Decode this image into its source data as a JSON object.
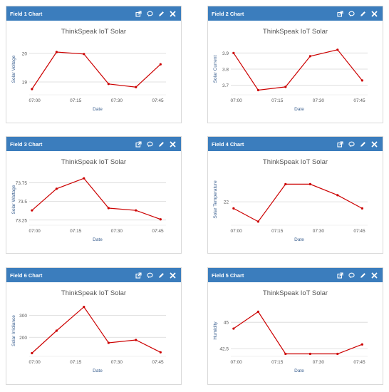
{
  "charts": [
    {
      "header": "Field 1 Chart",
      "chart_data": {
        "type": "line",
        "title": "ThinkSpeak IoT Solar",
        "xlabel": "Date",
        "ylabel": "Solar Voltage",
        "x_ticks": [
          "07:00",
          "07:15",
          "07:30",
          "07:45"
        ],
        "y_ticks": [
          "19",
          "20"
        ],
        "y_tick_values": [
          19,
          20
        ],
        "ylim": [
          18.6,
          20.3
        ],
        "x": [
          "06:59",
          "07:08",
          "07:18",
          "07:27",
          "07:37",
          "07:46"
        ],
        "y": [
          18.75,
          20.05,
          19.98,
          18.93,
          18.82,
          19.62
        ],
        "color": "#cc0000"
      }
    },
    {
      "header": "Field 2 Chart",
      "chart_data": {
        "type": "line",
        "title": "ThinkSpeak IoT Solar",
        "xlabel": "Date",
        "ylabel": "Solar Current",
        "x_ticks": [
          "07:00",
          "07:15",
          "07:30",
          "07:45"
        ],
        "y_ticks": [
          "3.7",
          "3.8",
          "3.9"
        ],
        "y_tick_values": [
          3.7,
          3.8,
          3.9
        ],
        "ylim": [
          3.65,
          3.95
        ],
        "x": [
          "06:59",
          "07:08",
          "07:18",
          "07:27",
          "07:37",
          "07:46"
        ],
        "y": [
          3.9,
          3.67,
          3.69,
          3.88,
          3.92,
          3.73
        ],
        "color": "#cc0000"
      }
    },
    {
      "header": "Field 3 Chart",
      "chart_data": {
        "type": "line",
        "title": "ThinkSpeak IoT Solar",
        "xlabel": "Date",
        "ylabel": "Solar Wattage",
        "x_ticks": [
          "07:00",
          "07:15",
          "07:30",
          "07:45"
        ],
        "y_ticks": [
          "73.25",
          "73.5",
          "73.75"
        ],
        "y_tick_values": [
          73.25,
          73.5,
          73.75
        ],
        "ylim": [
          73.2,
          73.85
        ],
        "x": [
          "06:59",
          "07:08",
          "07:18",
          "07:27",
          "07:37",
          "07:46"
        ],
        "y": [
          73.38,
          73.67,
          73.81,
          73.41,
          73.38,
          73.26
        ],
        "color": "#cc0000"
      }
    },
    {
      "header": "Field 4 Chart",
      "chart_data": {
        "type": "line",
        "title": "ThinkSpeak IoT Solar",
        "xlabel": "Date",
        "ylabel": "Solar Temperature",
        "x_ticks": [
          "07:00",
          "07:15",
          "07:30",
          "07:45"
        ],
        "y_ticks": [
          "22"
        ],
        "y_tick_values": [
          22
        ],
        "ylim": [
          21.0,
          23.2
        ],
        "x": [
          "06:59",
          "07:08",
          "07:18",
          "07:27",
          "07:37",
          "07:46"
        ],
        "y": [
          21.7,
          21.1,
          22.8,
          22.8,
          22.3,
          21.7
        ],
        "color": "#cc0000"
      }
    },
    {
      "header": "Field 6 Chart",
      "chart_data": {
        "type": "line",
        "title": "ThinkSpeak IoT Solar",
        "xlabel": "Date",
        "ylabel": "Solar Irridiance",
        "x_ticks": [
          "07:00",
          "07:15",
          "07:30",
          "07:45"
        ],
        "y_ticks": [
          "200",
          "300"
        ],
        "y_tick_values": [
          200,
          300
        ],
        "ylim": [
          120,
          340
        ],
        "x": [
          "06:59",
          "07:08",
          "07:18",
          "07:27",
          "07:37",
          "07:46"
        ],
        "y": [
          128,
          230,
          338,
          175,
          188,
          132
        ],
        "color": "#cc0000"
      }
    },
    {
      "header": "Field 5 Chart",
      "chart_data": {
        "type": "line",
        "title": "ThinkSpeak IoT Solar",
        "xlabel": "Date",
        "ylabel": "Humidity",
        "x_ticks": [
          "07:00",
          "07:15",
          "07:30",
          "07:45"
        ],
        "y_ticks": [
          "42.5",
          "45"
        ],
        "y_tick_values": [
          42.5,
          45
        ],
        "ylim": [
          41.9,
          46.5
        ],
        "x": [
          "06:59",
          "07:08",
          "07:18",
          "07:27",
          "07:37",
          "07:46"
        ],
        "y": [
          44.4,
          46.0,
          42.0,
          42.0,
          42.0,
          42.9
        ],
        "color": "#cc0000"
      }
    }
  ],
  "header_icons": [
    "external-link-icon",
    "comment-icon",
    "pencil-icon",
    "close-icon"
  ],
  "colors": {
    "header_bg": "#3b7dbd",
    "title_text": "#555555",
    "axis_label": "#3a5f8f",
    "series": "#cc0000",
    "grid": "#d8d8d8"
  }
}
